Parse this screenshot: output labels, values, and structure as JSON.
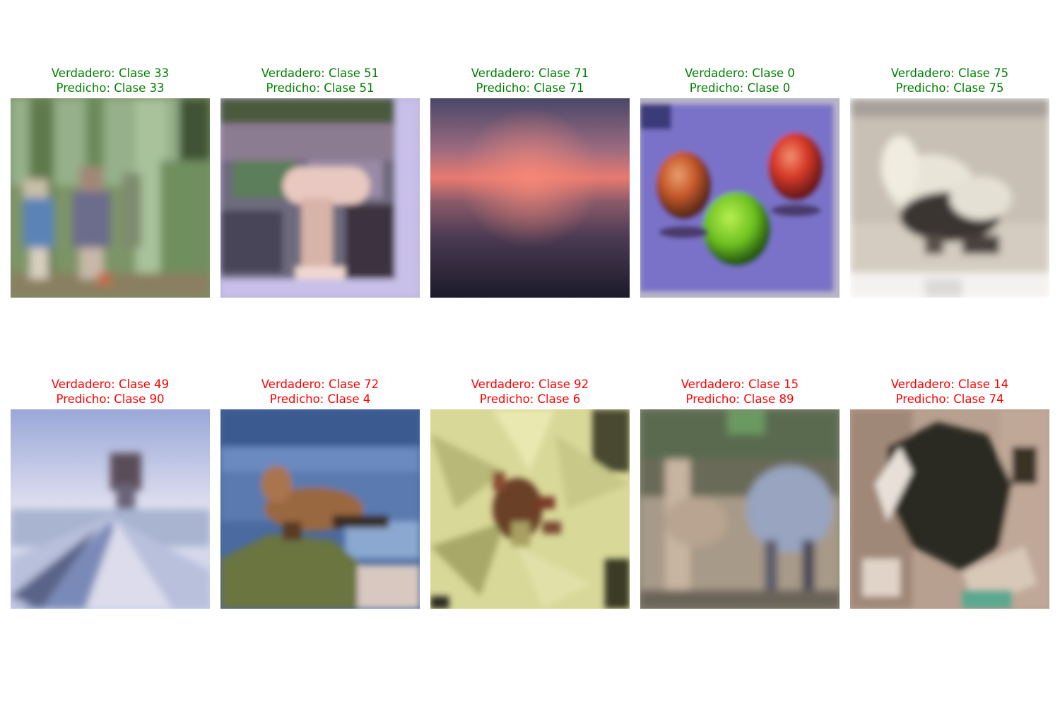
{
  "colors": {
    "correct": "#008000",
    "incorrect": "#ff0000"
  },
  "panels": [
    {
      "true_label": "Verdadero: Clase 33",
      "pred_label": "Predicho: Clase 33",
      "correct": true,
      "scene": "forest-people-image"
    },
    {
      "true_label": "Verdadero: Clase 51",
      "pred_label": "Predicho: Clase 51",
      "correct": true,
      "scene": "mushroom-image"
    },
    {
      "true_label": "Verdadero: Clase 71",
      "pred_label": "Predicho: Clase 71",
      "correct": true,
      "scene": "sunset-sea-image"
    },
    {
      "true_label": "Verdadero: Clase 0",
      "pred_label": "Predicho: Clase 0",
      "correct": true,
      "scene": "apples-image"
    },
    {
      "true_label": "Verdadero: Clase 75",
      "pred_label": "Predicho: Clase 75",
      "correct": true,
      "scene": "skunk-image"
    },
    {
      "true_label": "Verdadero: Clase 49",
      "pred_label": "Predicho: Clase 90",
      "correct": false,
      "scene": "road-mountain-image"
    },
    {
      "true_label": "Verdadero: Clase 72",
      "pred_label": "Predicho: Clase 4",
      "correct": false,
      "scene": "seal-rock-image"
    },
    {
      "true_label": "Verdadero: Clase 92",
      "pred_label": "Predicho: Clase 6",
      "correct": false,
      "scene": "lily-flower-image"
    },
    {
      "true_label": "Verdadero: Clase 15",
      "pred_label": "Predicho: Clase 89",
      "correct": false,
      "scene": "camel-image"
    },
    {
      "true_label": "Verdadero: Clase 14",
      "pred_label": "Predicho: Clase 74",
      "correct": false,
      "scene": "dark-animal-image"
    }
  ]
}
